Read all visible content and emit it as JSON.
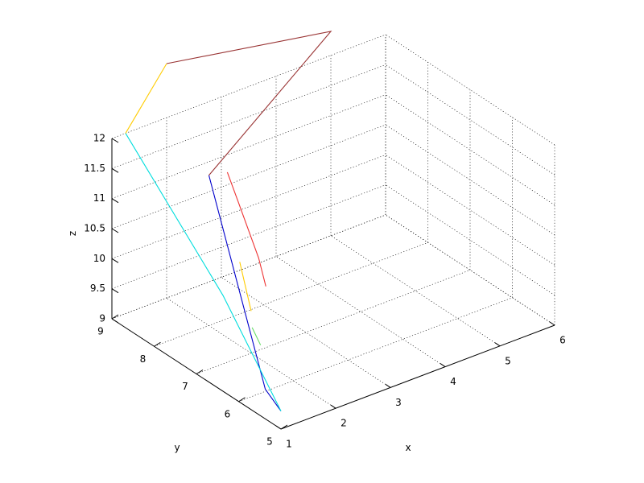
{
  "chart_data": {
    "type": "3d-line-mesh",
    "xlabel": "x",
    "ylabel": "y",
    "zlabel": "z",
    "xlim": [
      1,
      6
    ],
    "ylim": [
      5,
      9
    ],
    "zlim": [
      9,
      12
    ],
    "xticks": [
      "1",
      "2",
      "3",
      "4",
      "5",
      "6"
    ],
    "yticks": [
      "5",
      "6",
      "7",
      "8",
      "9"
    ],
    "zticks": [
      "9",
      "9.5",
      "10",
      "10.5",
      "11",
      "11.5",
      "12"
    ],
    "grid": true,
    "box": true,
    "view": "3d default (az -37.5, el 30)",
    "series": [
      {
        "color": "#0000cc",
        "points": [
          [
            1,
            5,
            9.3
          ],
          [
            1.1,
            5.5,
            9.4
          ],
          [
            2,
            8,
            11.5
          ]
        ]
      },
      {
        "color": "#00dddd",
        "points": [
          [
            1,
            5,
            9.3
          ],
          [
            1.1,
            6.5,
            10.5
          ],
          [
            1.25,
            9,
            12
          ]
        ]
      },
      {
        "color": "#ffcc00",
        "points": [
          [
            1.25,
            9,
            12
          ],
          [
            1.5,
            9,
            12.3
          ],
          [
            2,
            9,
            12.9
          ]
        ]
      },
      {
        "color": "#993333",
        "points": [
          [
            2,
            9,
            12.9
          ],
          [
            5,
            9,
            12.4
          ],
          [
            2,
            8,
            11.5
          ]
        ]
      },
      {
        "color": "#66dd66",
        "points": [
          [
            1.4,
            6,
            9.8
          ],
          [
            1.4,
            6.2,
            10.0
          ]
        ]
      },
      {
        "color": "#ee3333",
        "points": [
          [
            2.5,
            7.3,
            9.8
          ],
          [
            2.6,
            7.6,
            10.1
          ],
          [
            2.7,
            8.2,
            10.7
          ],
          [
            2.8,
            8.6,
            11.0
          ]
        ]
      },
      {
        "color": "#ffcc00",
        "points": [
          [
            2.0,
            7.0,
            9.7
          ],
          [
            2.1,
            7.4,
            10.3
          ]
        ]
      }
    ]
  }
}
